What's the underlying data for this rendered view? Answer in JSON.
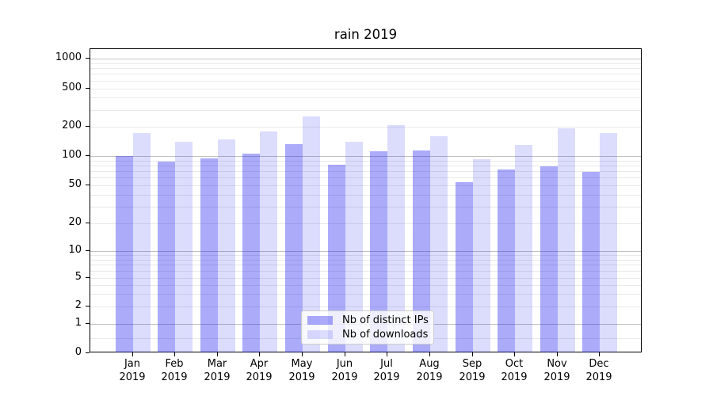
{
  "chart_data": {
    "type": "bar",
    "title": "rain 2019",
    "categories": [
      "Jan",
      "Feb",
      "Mar",
      "Apr",
      "May",
      "Jun",
      "Jul",
      "Aug",
      "Sep",
      "Oct",
      "Nov",
      "Dec"
    ],
    "x_tick_second_line": "2019",
    "series": [
      {
        "name": "Nb of distinct IPs",
        "color": "rgba(10,10,240,0.34)",
        "values": [
          100,
          87,
          94,
          105,
          133,
          82,
          112,
          114,
          54,
          73,
          78,
          69
        ]
      },
      {
        "name": "Nb of downloads",
        "color": "rgba(10,10,240,0.14)",
        "values": [
          172,
          140,
          148,
          178,
          258,
          141,
          209,
          161,
          92,
          130,
          193,
          173
        ]
      }
    ],
    "y_axis": {
      "scale": "symlog",
      "ticks": [
        0,
        1,
        2,
        5,
        10,
        20,
        50,
        100,
        200,
        500,
        1000
      ],
      "range_top": 1250
    },
    "grid": true,
    "legend_position": "lower center",
    "colors": {
      "axis": "#000000",
      "grid_major": "#c2c2c2",
      "grid_minor": "#e9e9e9",
      "text": "#000000"
    }
  }
}
